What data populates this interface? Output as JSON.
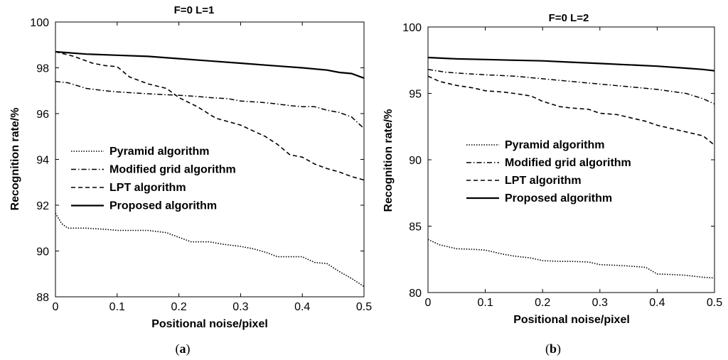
{
  "chart_data": [
    {
      "type": "line",
      "panel_label": "a",
      "title": "F=0 L=1",
      "xlabel": "Positional noise/pixel",
      "ylabel": "Recognition rate/%",
      "xlim": [
        0,
        0.5
      ],
      "ylim": [
        88,
        100
      ],
      "xticks": [
        0,
        0.1,
        0.2,
        0.3,
        0.4,
        0.5
      ],
      "yticks": [
        88,
        90,
        92,
        94,
        96,
        98,
        100
      ],
      "legend_position": "center-left",
      "series": [
        {
          "name": "Pyramid algorithm",
          "style": "dotted",
          "x": [
            0,
            0.01,
            0.02,
            0.05,
            0.08,
            0.1,
            0.12,
            0.15,
            0.18,
            0.2,
            0.22,
            0.25,
            0.27,
            0.3,
            0.32,
            0.34,
            0.36,
            0.38,
            0.4,
            0.42,
            0.44,
            0.46,
            0.48,
            0.5
          ],
          "values": [
            91.65,
            91.2,
            91.0,
            91.0,
            90.95,
            90.9,
            90.9,
            90.9,
            90.8,
            90.6,
            90.4,
            90.4,
            90.3,
            90.2,
            90.1,
            89.95,
            89.75,
            89.75,
            89.75,
            89.5,
            89.45,
            89.1,
            88.8,
            88.45
          ]
        },
        {
          "name": "Modified grid algorithm",
          "style": "dashdot",
          "x": [
            0,
            0.02,
            0.05,
            0.08,
            0.1,
            0.13,
            0.16,
            0.2,
            0.23,
            0.25,
            0.28,
            0.3,
            0.33,
            0.35,
            0.38,
            0.4,
            0.42,
            0.44,
            0.46,
            0.48,
            0.5
          ],
          "values": [
            97.4,
            97.35,
            97.1,
            97.0,
            96.95,
            96.9,
            96.85,
            96.8,
            96.75,
            96.7,
            96.65,
            96.55,
            96.5,
            96.45,
            96.35,
            96.3,
            96.3,
            96.15,
            96.05,
            95.85,
            95.35
          ]
        },
        {
          "name": "LPT algorithm",
          "style": "dashed",
          "x": [
            0,
            0.03,
            0.06,
            0.08,
            0.1,
            0.12,
            0.15,
            0.18,
            0.2,
            0.23,
            0.26,
            0.28,
            0.3,
            0.32,
            0.34,
            0.36,
            0.38,
            0.4,
            0.42,
            0.44,
            0.46,
            0.48,
            0.5
          ],
          "values": [
            98.7,
            98.5,
            98.2,
            98.1,
            98.05,
            97.6,
            97.3,
            97.1,
            96.7,
            96.3,
            95.8,
            95.65,
            95.5,
            95.25,
            95.0,
            94.65,
            94.2,
            94.1,
            93.8,
            93.6,
            93.45,
            93.25,
            93.1
          ]
        },
        {
          "name": "Proposed algorithm",
          "style": "solid",
          "x": [
            0,
            0.05,
            0.1,
            0.15,
            0.2,
            0.25,
            0.3,
            0.35,
            0.4,
            0.44,
            0.46,
            0.48,
            0.5
          ],
          "values": [
            98.7,
            98.6,
            98.55,
            98.5,
            98.4,
            98.3,
            98.2,
            98.1,
            98.0,
            97.9,
            97.8,
            97.75,
            97.55
          ]
        }
      ]
    },
    {
      "type": "line",
      "panel_label": "b",
      "title": "F=0 L=2",
      "xlabel": "Positional noise/pixel",
      "ylabel": "Recognition rate/%",
      "xlim": [
        0,
        0.5
      ],
      "ylim": [
        80,
        100
      ],
      "xticks": [
        0,
        0.1,
        0.2,
        0.3,
        0.4,
        0.5
      ],
      "yticks": [
        80,
        85,
        90,
        95,
        100
      ],
      "legend_position": "center-left",
      "series": [
        {
          "name": "Pyramid algorithm",
          "style": "dotted",
          "x": [
            0,
            0.02,
            0.05,
            0.08,
            0.1,
            0.13,
            0.15,
            0.18,
            0.2,
            0.23,
            0.25,
            0.28,
            0.3,
            0.33,
            0.35,
            0.38,
            0.4,
            0.43,
            0.45,
            0.48,
            0.5
          ],
          "values": [
            84.0,
            83.6,
            83.3,
            83.25,
            83.2,
            82.9,
            82.75,
            82.6,
            82.4,
            82.35,
            82.35,
            82.3,
            82.1,
            82.05,
            82.0,
            81.9,
            81.4,
            81.35,
            81.3,
            81.15,
            81.1
          ]
        },
        {
          "name": "Modified grid algorithm",
          "style": "dashdot",
          "x": [
            0,
            0.03,
            0.06,
            0.1,
            0.15,
            0.2,
            0.25,
            0.3,
            0.35,
            0.4,
            0.45,
            0.48,
            0.5
          ],
          "values": [
            96.8,
            96.6,
            96.5,
            96.4,
            96.3,
            96.1,
            95.9,
            95.7,
            95.5,
            95.3,
            95.0,
            94.6,
            94.2
          ]
        },
        {
          "name": "LPT algorithm",
          "style": "dashed",
          "x": [
            0,
            0.02,
            0.05,
            0.08,
            0.1,
            0.13,
            0.15,
            0.18,
            0.2,
            0.23,
            0.25,
            0.28,
            0.3,
            0.33,
            0.35,
            0.38,
            0.4,
            0.43,
            0.45,
            0.48,
            0.5
          ],
          "values": [
            96.3,
            95.9,
            95.6,
            95.4,
            95.2,
            95.1,
            95.0,
            94.8,
            94.4,
            94.0,
            93.9,
            93.8,
            93.5,
            93.4,
            93.2,
            92.9,
            92.6,
            92.3,
            92.1,
            91.8,
            91.1
          ]
        },
        {
          "name": "Proposed algorithm",
          "style": "solid",
          "x": [
            0,
            0.05,
            0.1,
            0.15,
            0.2,
            0.25,
            0.3,
            0.35,
            0.4,
            0.45,
            0.48,
            0.5
          ],
          "values": [
            97.7,
            97.6,
            97.55,
            97.5,
            97.45,
            97.35,
            97.25,
            97.15,
            97.05,
            96.9,
            96.8,
            96.7
          ]
        }
      ]
    }
  ]
}
